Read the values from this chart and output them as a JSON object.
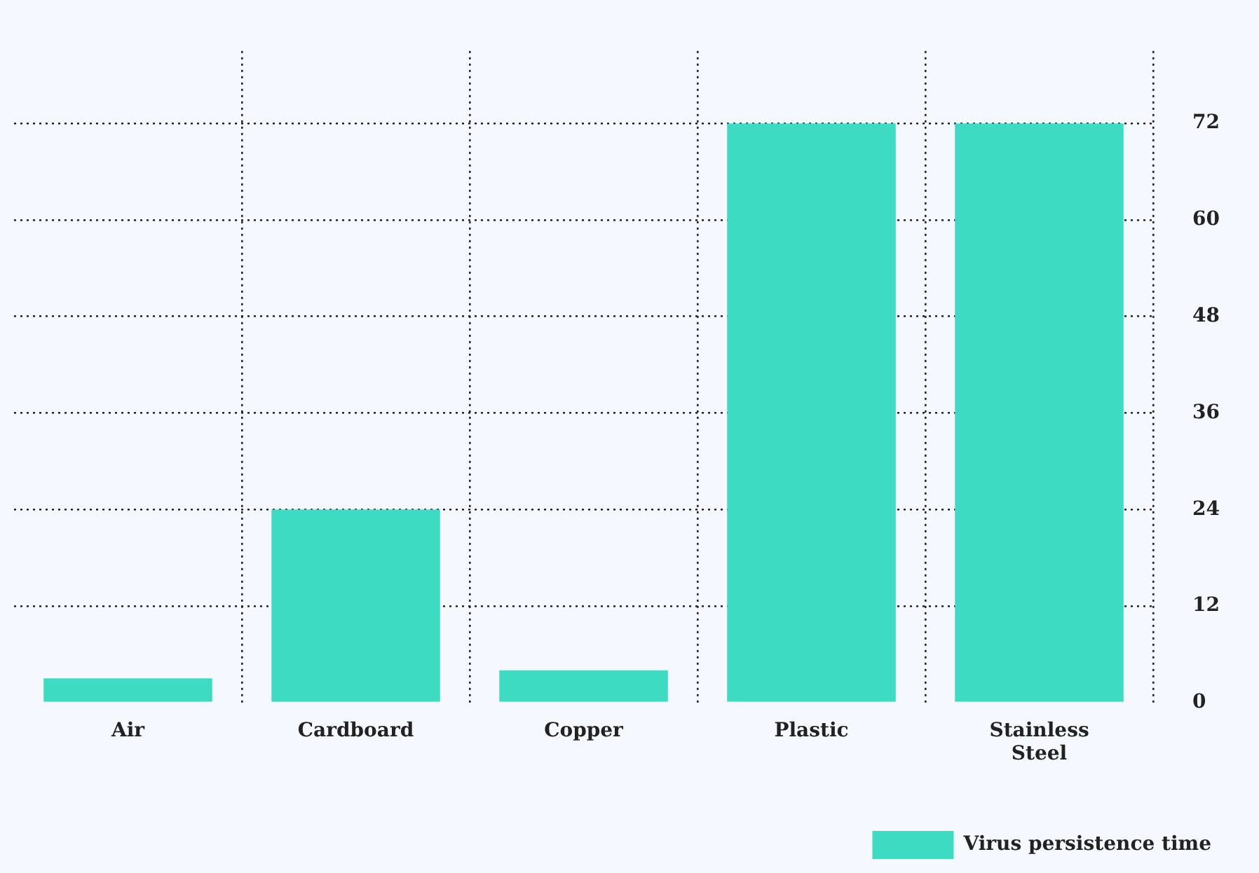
{
  "chart_data": {
    "type": "bar",
    "categories": [
      "Air",
      "Cardboard",
      "Copper",
      "Plastic",
      "Stainless Steel"
    ],
    "series": [
      {
        "name": "Virus persistence time",
        "color": "#3ddbc2",
        "values": [
          3,
          24,
          4,
          72,
          72
        ]
      }
    ],
    "ylim": [
      0,
      81
    ],
    "yticks": [
      0,
      12,
      24,
      36,
      48,
      60,
      72
    ],
    "grid": true,
    "legend": "bottom right"
  }
}
